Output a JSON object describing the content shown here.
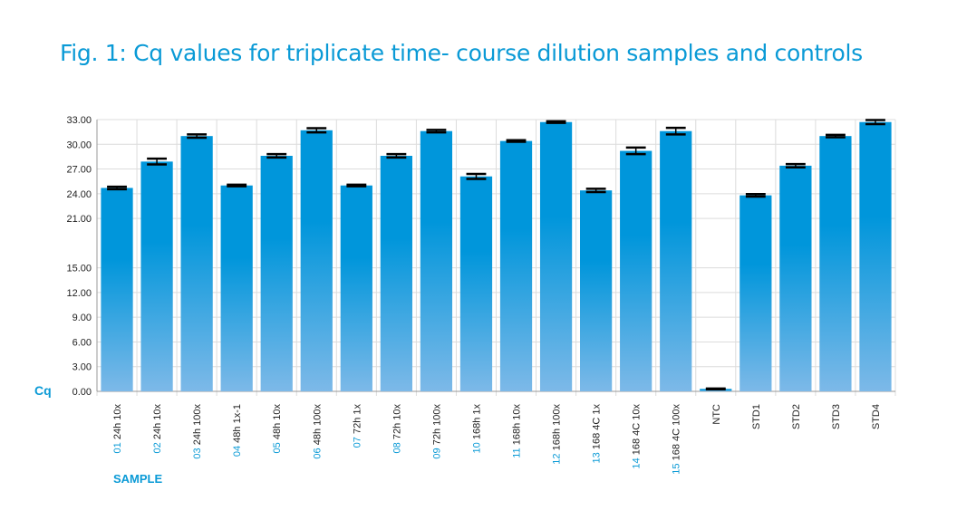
{
  "chart_data": {
    "type": "bar",
    "title": "Fig. 1: Cq values for triplicate time- course dilution samples and controls",
    "ylabel": "Cq",
    "xlabel": "SAMPLE",
    "ylim": [
      0,
      33
    ],
    "yticks": [
      "0.00",
      "3.00",
      "6.00",
      "9.00",
      "12.00",
      "15.00",
      "21.00",
      "24.00",
      "27.00",
      "30.00",
      "33.00"
    ],
    "ytick_values": [
      0,
      3,
      6,
      9,
      12,
      15,
      21,
      24,
      27,
      30,
      33
    ],
    "grid": true,
    "legend": "none",
    "categories": [
      {
        "num": "01",
        "label": "24h 10x"
      },
      {
        "num": "02",
        "label": "24h 10x"
      },
      {
        "num": "03",
        "label": "24h 100x"
      },
      {
        "num": "04",
        "label": "48h 1x-1"
      },
      {
        "num": "05",
        "label": "48h 10x"
      },
      {
        "num": "06",
        "label": "48h 100x"
      },
      {
        "num": "07",
        "label": "72h 1x"
      },
      {
        "num": "08",
        "label": "72h 10x"
      },
      {
        "num": "09",
        "label": "72h 100x"
      },
      {
        "num": "10",
        "label": "168h 1x"
      },
      {
        "num": "11",
        "label": "168h 10x"
      },
      {
        "num": "12",
        "label": "168h 100x"
      },
      {
        "num": "13",
        "label": "168 4C 1x"
      },
      {
        "num": "14",
        "label": "168 4C 10x"
      },
      {
        "num": "15",
        "label": "168 4C 100x"
      },
      {
        "num": "",
        "label": "NTC"
      },
      {
        "num": "",
        "label": "STD1"
      },
      {
        "num": "",
        "label": "STD2"
      },
      {
        "num": "",
        "label": "STD3"
      },
      {
        "num": "",
        "label": "STD4"
      }
    ],
    "values": [
      24.7,
      27.9,
      31.0,
      25.0,
      28.6,
      31.7,
      25.0,
      28.6,
      31.6,
      26.1,
      30.4,
      32.7,
      24.4,
      29.2,
      31.6,
      0.3,
      23.8,
      27.4,
      31.0,
      32.7
    ],
    "errors": [
      0.15,
      0.35,
      0.2,
      0.1,
      0.2,
      0.25,
      0.1,
      0.2,
      0.15,
      0.3,
      0.1,
      0.1,
      0.2,
      0.4,
      0.4,
      0.05,
      0.15,
      0.2,
      0.15,
      0.25
    ],
    "colors": {
      "bar_top": "#0096db",
      "bar_bottom": "#7db9e8",
      "accent": "#0a9ad6"
    }
  }
}
